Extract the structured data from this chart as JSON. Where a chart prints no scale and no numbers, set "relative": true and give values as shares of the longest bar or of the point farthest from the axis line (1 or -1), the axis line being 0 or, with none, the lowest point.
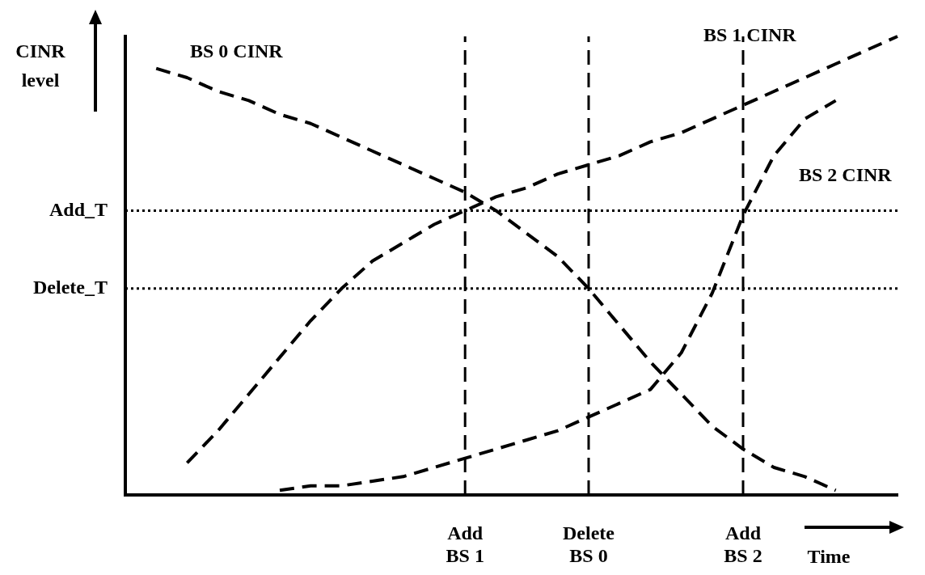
{
  "chart_data": {
    "type": "line",
    "relative": true,
    "xlabel": "Time",
    "ylabel": "CINR\nlevel",
    "legend": false,
    "grid": "x",
    "marker": "none",
    "line_style": "dashed",
    "ref_lines": [
      {
        "axis": "y",
        "value": 0.62,
        "label": "Add_T",
        "line_style": "dotted"
      },
      {
        "axis": "y",
        "value": 0.45,
        "label": "Delete_T",
        "line_style": "dotted"
      }
    ],
    "categories": [
      null,
      null,
      null,
      null,
      null,
      null,
      null,
      null,
      null,
      null,
      null,
      "Add\nBS 1",
      null,
      null,
      null,
      "Delete\nBS 0",
      null,
      null,
      null,
      null,
      "Add\nBS 2",
      null,
      null,
      null,
      null,
      null
    ],
    "series": [
      {
        "name": "BS 0 CINR",
        "color": "#000000",
        "values": [
          null,
          0.93,
          0.91,
          0.88,
          0.86,
          0.83,
          0.81,
          0.78,
          0.75,
          0.72,
          0.69,
          0.66,
          0.62,
          0.57,
          0.52,
          0.45,
          0.37,
          0.29,
          0.22,
          0.15,
          0.1,
          0.06,
          0.04,
          0.01,
          null,
          null
        ]
      },
      {
        "name": "BS 1 CINR",
        "color": "#000000",
        "values": [
          null,
          null,
          0.07,
          0.14,
          0.22,
          0.3,
          0.38,
          0.45,
          0.51,
          0.55,
          0.59,
          0.62,
          0.65,
          0.67,
          0.7,
          0.72,
          0.74,
          0.77,
          0.79,
          0.82,
          0.85,
          0.88,
          0.91,
          0.94,
          0.97,
          1
        ]
      },
      {
        "name": "BS 2 CINR",
        "color": "#000000",
        "values": [
          null,
          null,
          null,
          null,
          null,
          0.01,
          0.02,
          0.02,
          0.03,
          0.04,
          0.06,
          0.08,
          0.1,
          0.12,
          0.14,
          0.17,
          0.2,
          0.23,
          0.31,
          0.44,
          0.61,
          0.74,
          0.82,
          0.86,
          null,
          null
        ]
      }
    ]
  }
}
